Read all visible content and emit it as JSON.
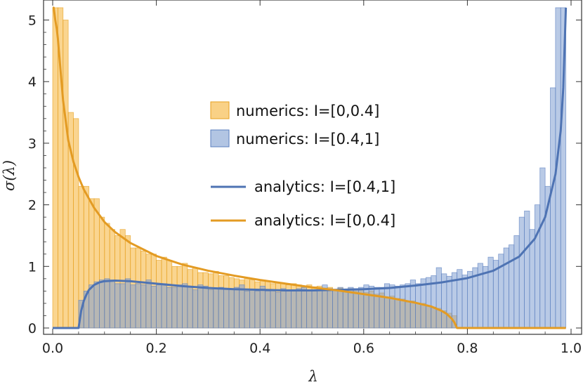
{
  "chart_data": {
    "type": "bar",
    "title": "",
    "xlabel": "λ",
    "ylabel": "σ(λ)",
    "xlim": [
      0.0,
      1.0
    ],
    "ylim": [
      0,
      5.2
    ],
    "x_ticks": [
      "0.0",
      "0.2",
      "0.4",
      "0.6",
      "0.8",
      "1.0"
    ],
    "y_ticks": [
      "0",
      "1",
      "2",
      "3",
      "4",
      "5"
    ],
    "bin_width": 0.01,
    "grid": false,
    "legend_position": "center",
    "series": [
      {
        "name": "numerics: I=[0,0.4]",
        "kind": "histogram",
        "color": "#f5b335",
        "bin_start": 0.0,
        "values": [
          5.2,
          5.2,
          5.0,
          3.5,
          3.4,
          2.3,
          2.3,
          2.1,
          2.1,
          1.8,
          1.7,
          1.6,
          1.5,
          1.6,
          1.5,
          1.3,
          1.3,
          1.25,
          1.2,
          1.2,
          1.1,
          1.15,
          1.1,
          1.0,
          1.0,
          1.05,
          0.95,
          0.98,
          0.9,
          0.9,
          0.88,
          0.92,
          0.85,
          0.85,
          0.82,
          0.8,
          0.78,
          0.82,
          0.78,
          0.75,
          0.78,
          0.76,
          0.72,
          0.74,
          0.72,
          0.7,
          0.72,
          0.7,
          0.68,
          0.7,
          0.67,
          0.68,
          0.65,
          0.66,
          0.63,
          0.65,
          0.62,
          0.64,
          0.6,
          0.62,
          0.58,
          0.6,
          0.55,
          0.57,
          0.5,
          0.52,
          0.48,
          0.47,
          0.42,
          0.44,
          0.4,
          0.4,
          0.36,
          0.34,
          0.32,
          0.28,
          0.24,
          0.2
        ]
      },
      {
        "name": "numerics: I=[0.4,1]",
        "kind": "histogram",
        "color": "#7f9fd1",
        "bin_start": 0.05,
        "values": [
          0.45,
          0.6,
          0.7,
          0.75,
          0.78,
          0.8,
          0.78,
          0.72,
          0.72,
          0.8,
          0.7,
          0.72,
          0.7,
          0.78,
          0.68,
          0.7,
          0.72,
          0.66,
          0.66,
          0.7,
          0.72,
          0.66,
          0.62,
          0.7,
          0.68,
          0.62,
          0.65,
          0.66,
          0.64,
          0.62,
          0.66,
          0.7,
          0.6,
          0.62,
          0.6,
          0.68,
          0.6,
          0.62,
          0.58,
          0.64,
          0.6,
          0.62,
          0.64,
          0.66,
          0.6,
          0.6,
          0.62,
          0.7,
          0.64,
          0.62,
          0.66,
          0.62,
          0.66,
          0.64,
          0.66,
          0.7,
          0.68,
          0.66,
          0.66,
          0.72,
          0.7,
          0.68,
          0.7,
          0.72,
          0.78,
          0.72,
          0.8,
          0.82,
          0.85,
          0.98,
          0.88,
          0.84,
          0.9,
          0.95,
          0.86,
          0.92,
          0.98,
          1.05,
          1.0,
          1.15,
          1.1,
          1.2,
          1.3,
          1.35,
          1.5,
          1.8,
          1.9,
          1.6,
          2.0,
          2.6,
          2.3,
          3.9,
          5.2,
          5.2
        ]
      },
      {
        "name": "analytics: I=[0.4,1]",
        "kind": "line",
        "color": "#4e73b3",
        "x": [
          0.0,
          0.05,
          0.051,
          0.055,
          0.06,
          0.065,
          0.07,
          0.08,
          0.09,
          0.1,
          0.12,
          0.15,
          0.2,
          0.25,
          0.3,
          0.35,
          0.4,
          0.45,
          0.5,
          0.55,
          0.6,
          0.65,
          0.7,
          0.75,
          0.8,
          0.85,
          0.9,
          0.93,
          0.95,
          0.97,
          0.98,
          0.985,
          0.99
        ],
        "y": [
          0.0,
          0.0,
          0.06,
          0.28,
          0.44,
          0.54,
          0.62,
          0.7,
          0.74,
          0.76,
          0.77,
          0.76,
          0.72,
          0.68,
          0.65,
          0.63,
          0.62,
          0.61,
          0.61,
          0.62,
          0.63,
          0.65,
          0.69,
          0.74,
          0.81,
          0.93,
          1.16,
          1.45,
          1.8,
          2.5,
          3.2,
          3.9,
          5.2
        ]
      },
      {
        "name": "analytics: I=[0,0.4]",
        "kind": "line",
        "color": "#e39b23",
        "x": [
          0.0,
          0.002,
          0.005,
          0.008,
          0.01,
          0.015,
          0.02,
          0.03,
          0.04,
          0.05,
          0.06,
          0.08,
          0.1,
          0.12,
          0.15,
          0.2,
          0.25,
          0.3,
          0.35,
          0.4,
          0.45,
          0.5,
          0.55,
          0.6,
          0.65,
          0.7,
          0.73,
          0.75,
          0.76,
          0.77,
          0.775,
          0.78,
          0.8,
          0.9,
          0.99
        ],
        "y": [
          5.2,
          5.2,
          5.0,
          4.85,
          4.7,
          4.2,
          3.7,
          3.05,
          2.7,
          2.45,
          2.25,
          1.95,
          1.72,
          1.56,
          1.38,
          1.17,
          1.03,
          0.93,
          0.85,
          0.78,
          0.72,
          0.66,
          0.61,
          0.55,
          0.49,
          0.41,
          0.35,
          0.28,
          0.23,
          0.15,
          0.09,
          0.0,
          0.0,
          0.0,
          0.0
        ]
      }
    ]
  }
}
